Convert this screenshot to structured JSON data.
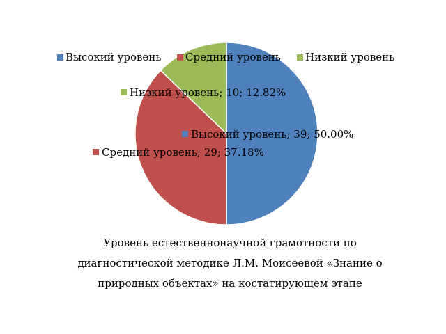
{
  "chart_data": {
    "type": "pie",
    "categories": [
      "Высокий уровень",
      "Средний уровень",
      "Низкий уровень"
    ],
    "values": [
      39,
      29,
      10
    ],
    "percents": [
      "50.00%",
      "37.18%",
      "12.82%"
    ],
    "colors": [
      "#4F81BD",
      "#C0504D",
      "#9BBB59"
    ],
    "legend_position": "top",
    "data_labels": [
      "Высокий уровень; 39; 50.00%",
      "Средний уровень; 29; 37.18%",
      "Низкий уровень; 10; 12.82%"
    ]
  },
  "caption": {
    "line1": "Уровень естественнонаучной грамотности по",
    "line2": "диагностической методике Л.М. Моисеевой «Знание о",
    "line3": "природных объектах» на костатирующем этапе"
  }
}
